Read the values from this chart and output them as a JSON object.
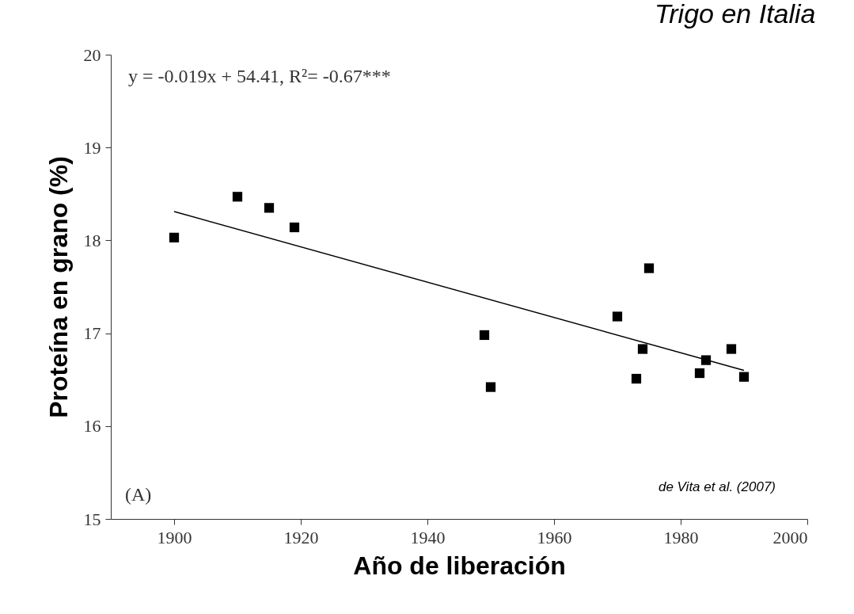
{
  "chart_data": {
    "type": "scatter",
    "title": "Trigo en Italia",
    "xlabel": "Año de liberación",
    "ylabel": "Proteína en grano (%)",
    "annotations": [
      "y = -0.019x + 54.41, R²= -0.67***",
      "(A)",
      "de Vita et al. (2007)"
    ],
    "x": [
      1900,
      1910,
      1915,
      1919,
      1949,
      1950,
      1970,
      1973,
      1974,
      1975,
      1983,
      1984,
      1988,
      1990
    ],
    "series": [
      {
        "color": "#000000",
        "marker": "square",
        "values": [
          18.03,
          18.47,
          18.35,
          18.14,
          16.98,
          16.42,
          17.18,
          16.51,
          16.83,
          17.7,
          16.57,
          16.71,
          16.83,
          16.53
        ]
      },
      {
        "type": "line",
        "color": "#000000",
        "x": [
          1900,
          1990
        ],
        "values": [
          18.31,
          16.6
        ]
      }
    ],
    "xlim": [
      1890,
      2000
    ],
    "xticks": [
      1900,
      1920,
      1940,
      1960,
      1980,
      2000
    ],
    "ylim": [
      15,
      20
    ],
    "yticks": [
      15,
      16,
      17,
      18,
      19,
      20
    ],
    "grid": false
  }
}
